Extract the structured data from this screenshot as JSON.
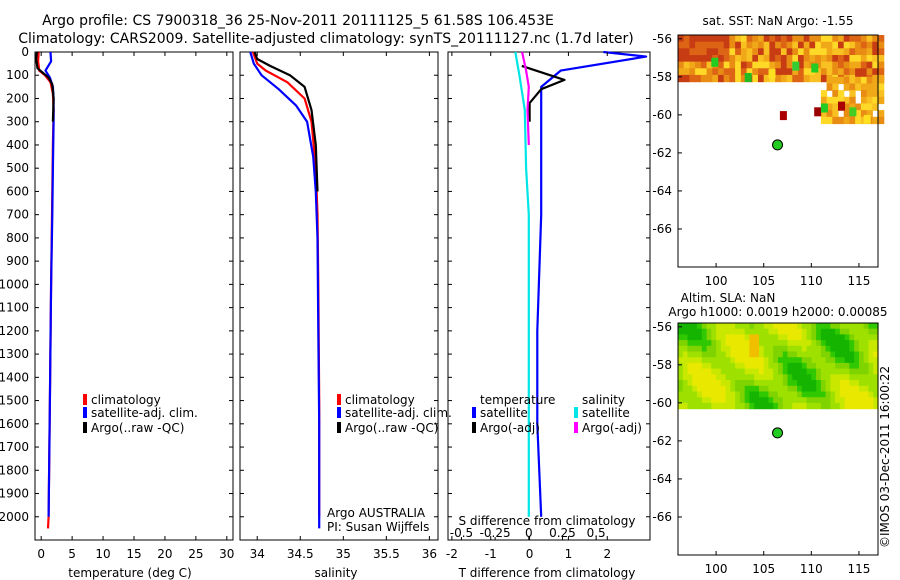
{
  "title": {
    "line1": "Argo profile: CS 7900318_36 25-Nov-2011 20111125_5 61.58S 106.453E",
    "line2": "Climatology: CARS2009. Satellite-adjusted climatology: synTS_20111127.nc (1.7d later)"
  },
  "colors": {
    "climatology": "#ff0000",
    "satellite": "#0000ff",
    "argo": "#000000",
    "sal_satellite": "#00e5e5",
    "sal_argo": "#ff00ff"
  },
  "chart_data": [
    {
      "id": "temperature",
      "type": "line",
      "xlabel": "temperature (deg C)",
      "ylabel": "",
      "xlim": [
        -1,
        31
      ],
      "ylim": [
        2100,
        0
      ],
      "xticks": [
        0,
        5,
        10,
        15,
        20,
        25,
        30
      ],
      "yticks": [
        0,
        100,
        200,
        300,
        400,
        500,
        600,
        700,
        800,
        900,
        1000,
        1100,
        1200,
        1300,
        1400,
        1500,
        1600,
        1700,
        1800,
        1900,
        2000
      ],
      "legend": [
        "climatology",
        "satellite-adj. clim.",
        "Argo(..raw -QC)"
      ],
      "series": [
        {
          "name": "climatology",
          "color": "#ff0000",
          "points": [
            [
              -0.4,
              0
            ],
            [
              -0.5,
              40
            ],
            [
              -0.3,
              80
            ],
            [
              0.6,
              100
            ],
            [
              1.5,
              130
            ],
            [
              1.9,
              180
            ],
            [
              2.0,
              250
            ],
            [
              1.9,
              400
            ],
            [
              1.8,
              600
            ],
            [
              1.6,
              1000
            ],
            [
              1.4,
              1500
            ],
            [
              1.2,
              2000
            ],
            [
              1.1,
              2050
            ]
          ]
        },
        {
          "name": "satellite-adj. clim.",
          "color": "#0000ff",
          "points": [
            [
              1.5,
              0
            ],
            [
              1.6,
              40
            ],
            [
              0.7,
              80
            ],
            [
              1.4,
              110
            ],
            [
              1.9,
              150
            ],
            [
              2.0,
              200
            ],
            [
              2.0,
              300
            ],
            [
              1.9,
              500
            ],
            [
              1.8,
              700
            ],
            [
              1.6,
              1000
            ],
            [
              1.4,
              1500
            ],
            [
              1.2,
              2000
            ]
          ]
        },
        {
          "name": "Argo(..raw -QC)",
          "color": "#000000",
          "points": [
            [
              -0.7,
              0
            ],
            [
              -0.8,
              30
            ],
            [
              -0.6,
              70
            ],
            [
              0.3,
              90
            ],
            [
              1.2,
              110
            ],
            [
              1.8,
              140
            ],
            [
              2.0,
              200
            ],
            [
              1.9,
              300
            ]
          ]
        }
      ]
    },
    {
      "id": "salinity",
      "type": "line",
      "xlabel": "salinity",
      "xlim": [
        33.8,
        36.1
      ],
      "ylim": [
        2100,
        0
      ],
      "xticks": [
        34,
        34.5,
        35,
        35.5,
        36
      ],
      "legend": [
        "climatology",
        "satellite-adj. clim.",
        "Argo(..raw -QC)"
      ],
      "annotation": [
        "Argo AUSTRALIA",
        "PI: Susan Wijffels"
      ],
      "series": [
        {
          "name": "climatology",
          "color": "#ff0000",
          "points": [
            [
              33.95,
              0
            ],
            [
              34.0,
              50
            ],
            [
              34.1,
              80
            ],
            [
              34.35,
              130
            ],
            [
              34.55,
              200
            ],
            [
              34.63,
              300
            ],
            [
              34.68,
              500
            ],
            [
              34.7,
              700
            ],
            [
              34.71,
              1000
            ],
            [
              34.72,
              1500
            ],
            [
              34.72,
              2000
            ]
          ]
        },
        {
          "name": "satellite-adj. clim.",
          "color": "#0000ff",
          "points": [
            [
              33.92,
              0
            ],
            [
              33.96,
              50
            ],
            [
              34.05,
              100
            ],
            [
              34.25,
              160
            ],
            [
              34.45,
              230
            ],
            [
              34.58,
              300
            ],
            [
              34.65,
              450
            ],
            [
              34.68,
              600
            ],
            [
              34.7,
              800
            ],
            [
              34.71,
              1200
            ],
            [
              34.72,
              1600
            ],
            [
              34.72,
              2050
            ]
          ]
        },
        {
          "name": "Argo(..raw -QC)",
          "color": "#000000",
          "points": [
            [
              33.97,
              0
            ],
            [
              34.0,
              30
            ],
            [
              34.15,
              60
            ],
            [
              34.38,
              100
            ],
            [
              34.55,
              150
            ],
            [
              34.63,
              250
            ],
            [
              34.68,
              400
            ],
            [
              34.7,
              600
            ]
          ]
        }
      ]
    },
    {
      "id": "difference",
      "type": "line",
      "xlabel": "T difference from climatology",
      "x2label": "S difference from climatology",
      "xlim": [
        -2.1,
        3.1
      ],
      "x2lim": [
        -0.6,
        0.9
      ],
      "ylim": [
        2100,
        0
      ],
      "xticks": [
        -2,
        -1,
        0,
        1,
        2
      ],
      "x2ticks": [
        -0.5,
        -0.25,
        0,
        0.25,
        0.5
      ],
      "x2ticklabels": [
        "-0.5",
        "-0.25",
        "0",
        "0.25",
        "0.5"
      ],
      "legend_temperature_title": "temperature",
      "legend_salinity_title": "salinity",
      "legend": [
        "satellite",
        "Argo(-adj)",
        "satellite",
        "Argo(-adj)"
      ],
      "series": [
        {
          "name": "T satellite",
          "color": "#0000ff",
          "axis": "x",
          "points": [
            [
              1.9,
              0
            ],
            [
              3.0,
              20
            ],
            [
              0.8,
              80
            ],
            [
              0.3,
              150
            ],
            [
              0.3,
              300
            ],
            [
              0.3,
              700
            ],
            [
              0.2,
              1200
            ],
            [
              0.2,
              1600
            ],
            [
              0.3,
              2000
            ]
          ]
        },
        {
          "name": "T Argo(-adj)",
          "color": "#000000",
          "axis": "x",
          "points": [
            [
              -0.2,
              60
            ],
            [
              0.9,
              120
            ],
            [
              0.3,
              160
            ],
            [
              0.0,
              220
            ],
            [
              0.0,
              300
            ]
          ]
        },
        {
          "name": "S satellite",
          "color": "#00e5e5",
          "axis": "x2",
          "points": [
            [
              -0.1,
              0
            ],
            [
              -0.07,
              100
            ],
            [
              -0.03,
              250
            ],
            [
              -0.02,
              500
            ],
            [
              0.0,
              700
            ],
            [
              0.0,
              1000
            ],
            [
              0.0,
              2000
            ]
          ]
        },
        {
          "name": "S Argo(-adj)",
          "color": "#ff00ff",
          "axis": "x2",
          "points": [
            [
              -0.05,
              0
            ],
            [
              -0.02,
              80
            ],
            [
              0.0,
              150
            ],
            [
              -0.01,
              250
            ],
            [
              0.0,
              400
            ]
          ]
        }
      ]
    },
    {
      "id": "sst_map",
      "type": "heatmap",
      "title": "sat. SST: NaN  Argo: -1.55",
      "xlim": [
        96,
        117
      ],
      "ylim": [
        -68,
        -55.8
      ],
      "xticks": [
        100,
        105,
        110,
        115
      ],
      "yticks": [
        -56,
        -58,
        -60,
        -62,
        -64,
        -66
      ],
      "argo_position": [
        106.45,
        -61.58
      ]
    },
    {
      "id": "sla_map",
      "type": "heatmap",
      "title": "Altim. SLA: NaN",
      "subtitle": "Argo h1000: 0.0019 h2000: 0.00085",
      "xlim": [
        96,
        117
      ],
      "ylim": [
        -68,
        -55.8
      ],
      "xticks": [
        100,
        105,
        110,
        115
      ],
      "yticks": [
        -56,
        -58,
        -60,
        -62,
        -64,
        -66
      ],
      "argo_position": [
        106.45,
        -61.58
      ]
    }
  ],
  "credit": "©IMOS 03-Dec-2011 16:00:22"
}
